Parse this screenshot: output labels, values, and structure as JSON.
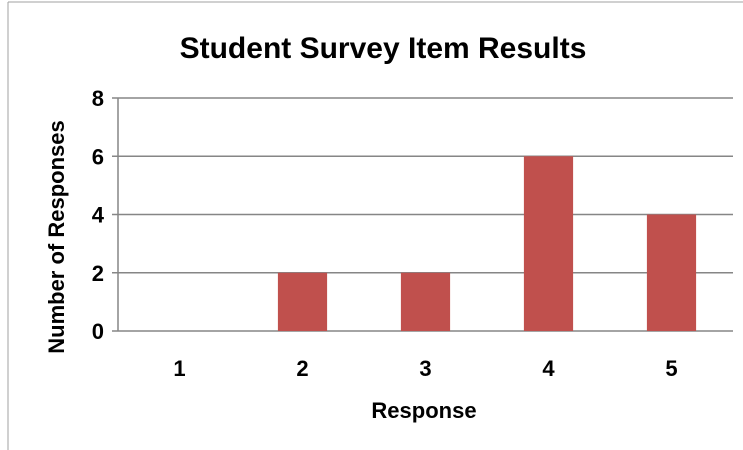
{
  "chart_data": {
    "type": "bar",
    "title": "Student Survey Item Results",
    "xlabel": "Response",
    "ylabel": "Number of Responses",
    "categories": [
      "1",
      "2",
      "3",
      "4",
      "5"
    ],
    "values": [
      0,
      2,
      2,
      6,
      4
    ],
    "ylim": [
      0,
      8
    ],
    "yticks": [
      0,
      2,
      4,
      6,
      8
    ],
    "grid": true,
    "legend": "none",
    "bar_color": "#c0504d",
    "grid_color": "#868686"
  }
}
